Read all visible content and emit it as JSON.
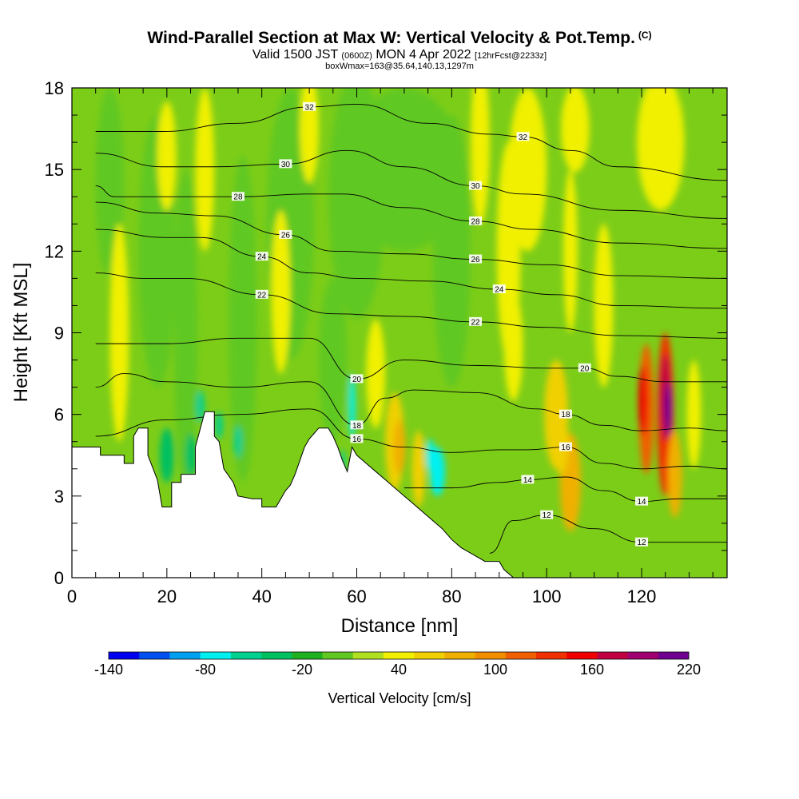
{
  "title": {
    "main": "Wind-Parallel Section at Max W: Vertical Velocity & Pot.Temp.",
    "copyright": "(C)",
    "valid_prefix": "Valid 1500 JST",
    "valid_z": "(0600Z)",
    "valid_date": "MON 4 Apr 2022",
    "forecast": "[12hrFcst@2233z]",
    "box": "boxWmax=163@35.64,140.13,1297m"
  },
  "chart_data": {
    "type": "heatmap",
    "xlabel": "Distance [nm]",
    "ylabel": "Height [Kft MSL]",
    "xlim": [
      0,
      138
    ],
    "ylim": [
      0,
      18
    ],
    "x_ticks": [
      0,
      20,
      40,
      60,
      80,
      100,
      120
    ],
    "y_ticks": [
      0,
      3,
      6,
      9,
      12,
      15,
      18
    ],
    "colorbar": {
      "label": "Vertical Velocity [cm/s]",
      "min": -140,
      "max": 220,
      "step": 20,
      "tick_values": [
        -140,
        -80,
        -20,
        40,
        100,
        160,
        220
      ],
      "colors": [
        "#0000f0",
        "#0050f0",
        "#00a0f0",
        "#00f0f0",
        "#00d090",
        "#00c060",
        "#20b020",
        "#60c820",
        "#b0e020",
        "#f0f000",
        "#f0d000",
        "#f0b000",
        "#f09000",
        "#f06000",
        "#f03000",
        "#f00000",
        "#c00040",
        "#a00070",
        "#700090"
      ]
    },
    "terrain": [
      [
        0,
        4.8
      ],
      [
        6,
        4.8
      ],
      [
        6,
        4.5
      ],
      [
        11,
        4.5
      ],
      [
        11,
        4.2
      ],
      [
        13,
        4.2
      ],
      [
        13,
        5.2
      ],
      [
        14,
        5.5
      ],
      [
        16,
        5.5
      ],
      [
        16,
        4.5
      ],
      [
        18,
        3.6
      ],
      [
        19,
        2.6
      ],
      [
        21,
        2.6
      ],
      [
        21,
        3.5
      ],
      [
        23,
        3.5
      ],
      [
        23,
        3.8
      ],
      [
        26,
        3.8
      ],
      [
        26,
        4.8
      ],
      [
        28,
        6.1
      ],
      [
        30,
        6.1
      ],
      [
        30,
        5.2
      ],
      [
        31,
        5.0
      ],
      [
        32,
        4.0
      ],
      [
        34,
        3.5
      ],
      [
        35,
        3.0
      ],
      [
        38,
        2.9
      ],
      [
        40,
        2.9
      ],
      [
        40,
        2.6
      ],
      [
        43,
        2.6
      ],
      [
        44,
        2.9
      ],
      [
        45,
        3.2
      ],
      [
        46,
        3.4
      ],
      [
        47,
        3.8
      ],
      [
        48,
        4.3
      ],
      [
        49,
        4.8
      ],
      [
        50,
        5.1
      ],
      [
        51,
        5.3
      ],
      [
        52,
        5.5
      ],
      [
        54,
        5.5
      ],
      [
        55,
        5.2
      ],
      [
        56,
        4.8
      ],
      [
        57,
        4.3
      ],
      [
        58,
        3.9
      ],
      [
        59,
        4.8
      ],
      [
        60,
        4.5
      ],
      [
        62,
        4.2
      ],
      [
        64,
        3.9
      ],
      [
        66,
        3.6
      ],
      [
        68,
        3.3
      ],
      [
        70,
        3.0
      ],
      [
        72,
        2.7
      ],
      [
        74,
        2.4
      ],
      [
        76,
        2.1
      ],
      [
        78,
        1.8
      ],
      [
        80,
        1.4
      ],
      [
        82,
        1.1
      ],
      [
        84,
        0.9
      ],
      [
        87,
        0.6
      ],
      [
        90,
        0.6
      ],
      [
        91,
        0.3
      ],
      [
        93,
        0
      ],
      [
        138,
        0
      ]
    ],
    "theta_contours": [
      {
        "label": "12",
        "pts": [
          [
            88,
            0.9
          ],
          [
            93,
            2.1
          ],
          [
            100,
            2.3
          ],
          [
            110,
            1.8
          ],
          [
            120,
            1.3
          ],
          [
            138,
            1.3
          ]
        ]
      },
      {
        "label": "14",
        "pts": [
          [
            70,
            3.3
          ],
          [
            80,
            3.3
          ],
          [
            90,
            3.5
          ],
          [
            96,
            3.6
          ],
          [
            104,
            3.7
          ],
          [
            112,
            3.2
          ],
          [
            120,
            2.8
          ],
          [
            128,
            2.9
          ],
          [
            138,
            2.9
          ]
        ]
      },
      {
        "label": "16",
        "pts": [
          [
            5,
            5.2
          ],
          [
            20,
            5.8
          ],
          [
            35,
            6.0
          ],
          [
            50,
            6.2
          ],
          [
            60,
            5.1
          ],
          [
            70,
            4.8
          ],
          [
            80,
            4.6
          ],
          [
            90,
            4.7
          ],
          [
            96,
            4.7
          ],
          [
            104,
            4.8
          ],
          [
            112,
            4.2
          ],
          [
            120,
            4.0
          ],
          [
            130,
            4.1
          ],
          [
            138,
            4.0
          ]
        ]
      },
      {
        "label": "18",
        "pts": [
          [
            5,
            7.0
          ],
          [
            11,
            7.5
          ],
          [
            20,
            7.2
          ],
          [
            35,
            7.0
          ],
          [
            50,
            7.2
          ],
          [
            60,
            5.6
          ],
          [
            66,
            6.6
          ],
          [
            72,
            6.9
          ],
          [
            85,
            6.8
          ],
          [
            98,
            6.2
          ],
          [
            104,
            6.0
          ],
          [
            112,
            5.6
          ],
          [
            120,
            5.4
          ],
          [
            130,
            5.5
          ],
          [
            138,
            5.4
          ]
        ]
      },
      {
        "label": "20",
        "pts": [
          [
            5,
            8.6
          ],
          [
            20,
            8.6
          ],
          [
            35,
            8.8
          ],
          [
            50,
            8.8
          ],
          [
            60,
            7.3
          ],
          [
            70,
            8.0
          ],
          [
            85,
            7.8
          ],
          [
            100,
            7.7
          ],
          [
            108,
            7.7
          ],
          [
            115,
            7.4
          ],
          [
            125,
            7.2
          ],
          [
            138,
            7.2
          ]
        ]
      },
      {
        "label": "22",
        "pts": [
          [
            5,
            11.2
          ],
          [
            15,
            11.0
          ],
          [
            24,
            11.0
          ],
          [
            40,
            10.4
          ],
          [
            55,
            9.7
          ],
          [
            70,
            9.6
          ],
          [
            85,
            9.4
          ],
          [
            100,
            9.2
          ],
          [
            115,
            8.9
          ],
          [
            138,
            8.8
          ]
        ]
      },
      {
        "label": "24",
        "pts": [
          [
            5,
            12.8
          ],
          [
            20,
            12.5
          ],
          [
            27,
            12.5
          ],
          [
            40,
            11.8
          ],
          [
            50,
            11.2
          ],
          [
            60,
            11.0
          ],
          [
            75,
            10.9
          ],
          [
            90,
            10.6
          ],
          [
            102,
            10.4
          ],
          [
            115,
            10.0
          ],
          [
            138,
            9.9
          ]
        ]
      },
      {
        "label": "26",
        "pts": [
          [
            5,
            13.8
          ],
          [
            18,
            13.4
          ],
          [
            30,
            13.3
          ],
          [
            45,
            12.6
          ],
          [
            55,
            12.0
          ],
          [
            70,
            11.9
          ],
          [
            85,
            11.7
          ],
          [
            100,
            11.5
          ],
          [
            115,
            11.1
          ],
          [
            138,
            11.0
          ]
        ]
      },
      {
        "label": "28",
        "pts": [
          [
            5,
            14.4
          ],
          [
            9,
            14.0
          ],
          [
            20,
            14.0
          ],
          [
            35,
            14.0
          ],
          [
            50,
            14.1
          ],
          [
            57,
            14.1
          ],
          [
            70,
            13.6
          ],
          [
            85,
            13.1
          ],
          [
            97,
            12.8
          ],
          [
            115,
            12.3
          ],
          [
            138,
            12.1
          ]
        ]
      },
      {
        "label": "30",
        "pts": [
          [
            5,
            15.6
          ],
          [
            19,
            15.1
          ],
          [
            30,
            15.1
          ],
          [
            45,
            15.2
          ],
          [
            58,
            15.7
          ],
          [
            70,
            15.1
          ],
          [
            85,
            14.4
          ],
          [
            95,
            14.1
          ],
          [
            115,
            13.5
          ],
          [
            138,
            13.2
          ]
        ]
      },
      {
        "label": "32",
        "pts": [
          [
            5,
            16.4
          ],
          [
            19,
            16.4
          ],
          [
            35,
            16.7
          ],
          [
            50,
            17.3
          ],
          [
            60,
            17.4
          ],
          [
            75,
            16.7
          ],
          [
            88,
            16.3
          ],
          [
            95,
            16.2
          ],
          [
            105,
            15.7
          ],
          [
            115,
            15.1
          ],
          [
            138,
            14.6
          ]
        ]
      }
    ]
  }
}
